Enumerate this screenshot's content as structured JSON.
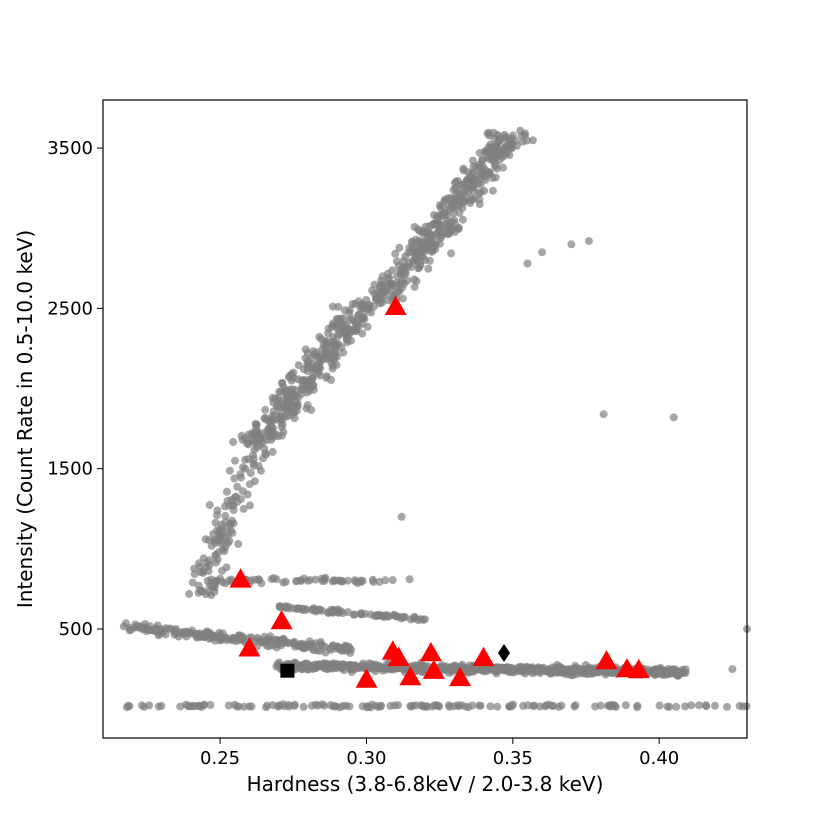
{
  "chart_data": {
    "type": "scatter",
    "xlabel": "Hardness (3.8-6.8keV / 2.0-3.8 keV)",
    "ylabel": "Intensity (Count Rate in 0.5-10.0 keV)",
    "xlim": [
      0.21,
      0.43
    ],
    "ylim": [
      -180,
      3800
    ],
    "xticks": [
      0.25,
      0.3,
      0.35,
      0.4
    ],
    "xtick_labels": [
      "0.25",
      "0.30",
      "0.35",
      "0.40"
    ],
    "yticks": [
      500,
      1500,
      2500,
      3500
    ],
    "ytick_labels": [
      "500",
      "1500",
      "2500",
      "3500"
    ],
    "grid": false,
    "colors": {
      "background_points": "#808080",
      "triangles": "#ff0000",
      "square": "#000000",
      "diamond": "#000000"
    },
    "background_point_regions": [
      {
        "comment_free_id": "upper-branch",
        "x": [
          0.255,
          0.35
        ],
        "y": [
          1500,
          3600
        ],
        "count": 700
      },
      {
        "comment_free_id": "horizontal-band",
        "x": [
          0.21,
          0.4
        ],
        "y": [
          150,
          700
        ],
        "count": 900
      },
      {
        "comment_free_id": "bottom-row",
        "x": [
          0.215,
          0.43
        ],
        "y": [
          0,
          50
        ],
        "count": 140
      },
      {
        "comment_free_id": "mid-branch",
        "x": [
          0.23,
          0.3
        ],
        "y": [
          700,
          1650
        ],
        "count": 120
      }
    ],
    "series": [
      {
        "marker": "triangle",
        "color": "#ff0000",
        "points": [
          [
            0.31,
            2510
          ],
          [
            0.257,
            810
          ],
          [
            0.271,
            550
          ],
          [
            0.26,
            380
          ],
          [
            0.309,
            360
          ],
          [
            0.311,
            320
          ],
          [
            0.322,
            350
          ],
          [
            0.323,
            240
          ],
          [
            0.34,
            320
          ],
          [
            0.382,
            300
          ],
          [
            0.389,
            250
          ],
          [
            0.393,
            245
          ],
          [
            0.3,
            185
          ],
          [
            0.315,
            200
          ],
          [
            0.332,
            195
          ]
        ]
      },
      {
        "marker": "square",
        "color": "#000000",
        "points": [
          [
            0.273,
            240
          ]
        ]
      },
      {
        "marker": "diamond",
        "color": "#000000",
        "points": [
          [
            0.347,
            350
          ]
        ]
      }
    ]
  }
}
